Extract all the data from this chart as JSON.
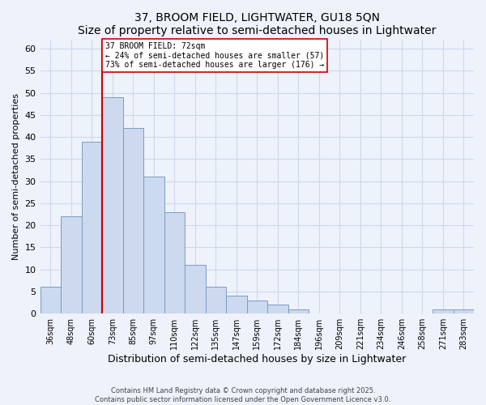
{
  "title": "37, BROOM FIELD, LIGHTWATER, GU18 5QN",
  "subtitle": "Size of property relative to semi-detached houses in Lightwater",
  "xlabel": "Distribution of semi-detached houses by size in Lightwater",
  "ylabel": "Number of semi-detached properties",
  "bin_labels": [
    "36sqm",
    "48sqm",
    "60sqm",
    "73sqm",
    "85sqm",
    "97sqm",
    "110sqm",
    "122sqm",
    "135sqm",
    "147sqm",
    "159sqm",
    "172sqm",
    "184sqm",
    "196sqm",
    "209sqm",
    "221sqm",
    "234sqm",
    "246sqm",
    "258sqm",
    "271sqm",
    "283sqm"
  ],
  "bar_values": [
    6,
    22,
    39,
    49,
    42,
    31,
    23,
    11,
    6,
    4,
    3,
    2,
    1,
    0,
    0,
    0,
    0,
    0,
    0,
    1,
    1
  ],
  "bar_color": "#ccd9ee",
  "bar_edge_color": "#7a9cc8",
  "bar_width": 1.0,
  "vline_bin_index": 3,
  "vline_color": "#cc0000",
  "annotation_line1": "37 BROOM FIELD: 72sqm",
  "annotation_line2": "← 24% of semi-detached houses are smaller (57)",
  "annotation_line3": "73% of semi-detached houses are larger (176) →",
  "ylim": [
    0,
    62
  ],
  "yticks": [
    0,
    5,
    10,
    15,
    20,
    25,
    30,
    35,
    40,
    45,
    50,
    55,
    60
  ],
  "footer_line1": "Contains HM Land Registry data © Crown copyright and database right 2025.",
  "footer_line2": "Contains public sector information licensed under the Open Government Licence v3.0.",
  "background_color": "#eef2fb",
  "grid_color": "#d0d8ec"
}
